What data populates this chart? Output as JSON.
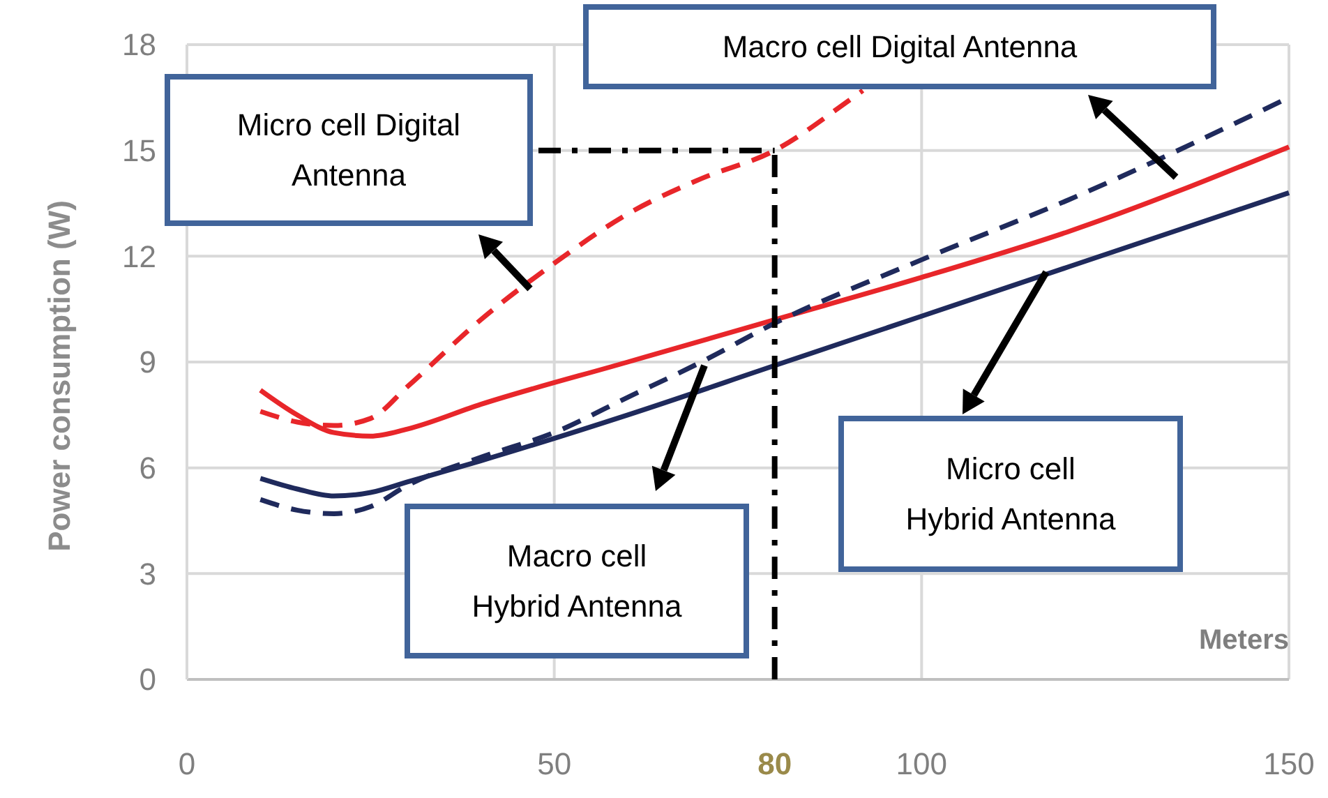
{
  "chart_data": {
    "type": "line",
    "ylabel": "Power consumption (W)",
    "xlabel": "Meters",
    "xlim": [
      0,
      150
    ],
    "xticks": [
      0,
      50,
      100,
      150
    ],
    "ylim": [
      0,
      18
    ],
    "yticks": [
      0,
      3,
      6,
      9,
      12,
      15,
      18
    ],
    "grid": true,
    "series": [
      {
        "color": "#e8262a",
        "line_style": "dashed",
        "x": [
          10,
          15,
          20,
          25,
          30,
          40,
          50,
          60,
          70,
          80,
          90,
          92
        ],
        "values": [
          7.6,
          7.3,
          7.2,
          7.4,
          8.3,
          10.2,
          11.8,
          13.2,
          14.2,
          15.0,
          16.4,
          16.7
        ]
      },
      {
        "color": "#e8262a",
        "line_style": "solid",
        "x": [
          10,
          15,
          20,
          25,
          30,
          40,
          60,
          80,
          100,
          120,
          150
        ],
        "values": [
          8.2,
          7.5,
          7.0,
          6.9,
          7.1,
          7.8,
          9.0,
          10.2,
          11.4,
          12.7,
          15.1
        ]
      },
      {
        "color": "#1f2a5c",
        "line_style": "dashed",
        "x": [
          10,
          15,
          20,
          25,
          30,
          40,
          50,
          60,
          70,
          80,
          100,
          120,
          150
        ],
        "values": [
          5.1,
          4.8,
          4.7,
          4.9,
          5.5,
          6.3,
          7.0,
          8.0,
          9.0,
          10.1,
          11.9,
          13.6,
          16.5
        ]
      },
      {
        "color": "#1f2a5c",
        "line_style": "solid",
        "x": [
          10,
          15,
          20,
          25,
          30,
          40,
          60,
          80,
          100,
          120,
          150
        ],
        "values": [
          5.7,
          5.4,
          5.2,
          5.3,
          5.6,
          6.2,
          7.5,
          8.9,
          10.3,
          11.7,
          13.8
        ]
      }
    ],
    "annotations": [
      "Micro cell Digital Antenna",
      "Macro cell Digital Antenna",
      "Macro cell Hybrid Antenna",
      "Micro cell Hybrid Antenna"
    ],
    "ref_lines": [
      {
        "axis": "x",
        "value": 80,
        "label": "80",
        "color": "#000000",
        "line_style": "dashed"
      },
      {
        "axis": "y",
        "value": 15,
        "color": "#000000",
        "line_style": "dashed"
      }
    ]
  }
}
